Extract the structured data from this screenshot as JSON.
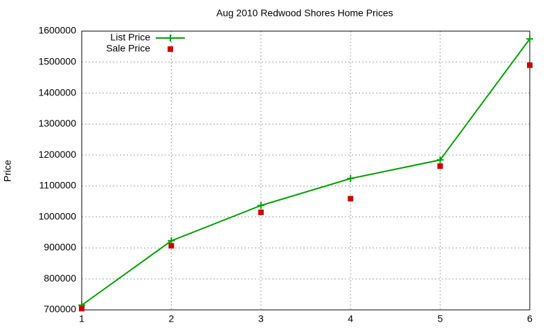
{
  "chart_data": {
    "type": "line",
    "title": "Aug 2010 Redwood Shores Home Prices",
    "y_label": "Price",
    "x": [
      1,
      2,
      3,
      4,
      5,
      6
    ],
    "xlim": [
      1,
      6
    ],
    "xticks": [
      1,
      2,
      3,
      4,
      5,
      6
    ],
    "ylim": [
      700000,
      1600000
    ],
    "yticks": [
      700000,
      800000,
      900000,
      1000000,
      1100000,
      1200000,
      1300000,
      1400000,
      1500000,
      1600000
    ],
    "grid": true,
    "legend": "top-left",
    "series": [
      {
        "name": "List Price",
        "color": "#009e00",
        "mode": "lines+points",
        "values": [
          715000,
          923000,
          1037000,
          1124000,
          1184000,
          1575000
        ]
      },
      {
        "name": "Sale Price",
        "color": "#cc0000",
        "mode": "points",
        "values": [
          704000,
          907000,
          1015000,
          1059000,
          1164000,
          1490000
        ]
      }
    ]
  }
}
